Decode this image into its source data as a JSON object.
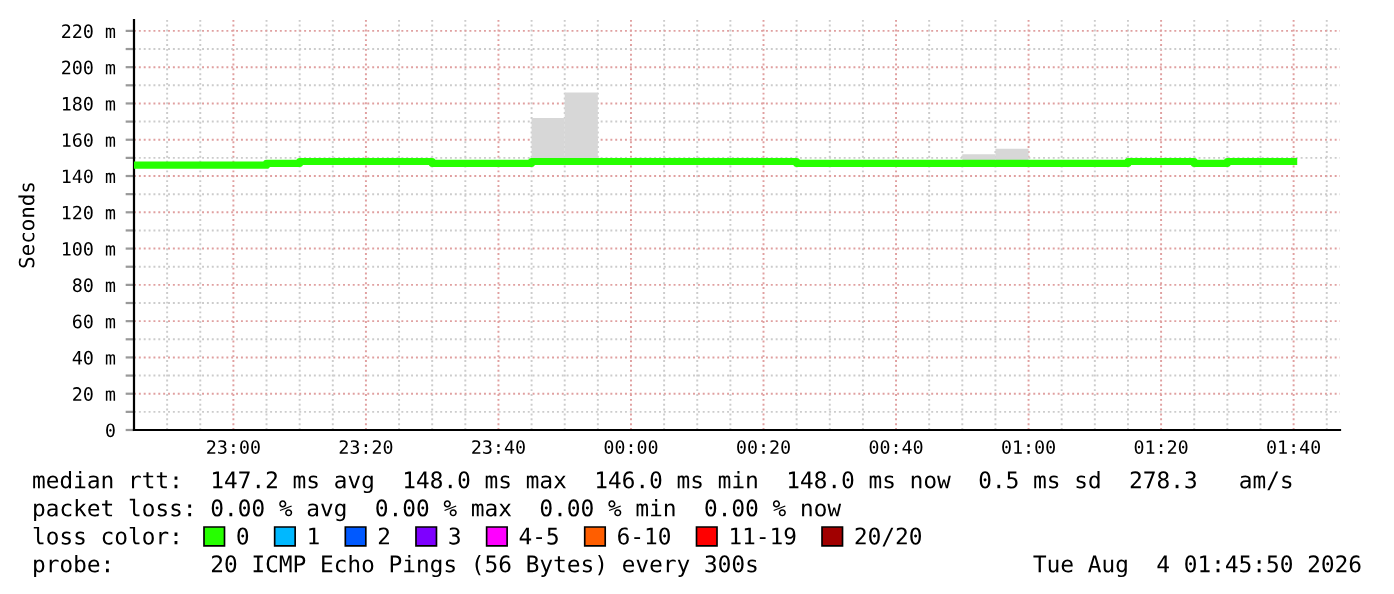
{
  "chart_data": {
    "type": "step",
    "ylabel": "Seconds",
    "legend_title": "loss color:",
    "legend": "bottom",
    "grid": true,
    "xlim": [
      "2026-08-03T22:45",
      "2026-08-04T01:47"
    ],
    "ylim": [
      0,
      226
    ],
    "xticks": [
      {
        "value": "2026-08-03T22:50",
        "label": null
      },
      {
        "value": "2026-08-03T22:55",
        "label": null
      },
      {
        "value": "2026-08-03T23:00",
        "label": "23:00"
      },
      {
        "value": "2026-08-03T23:05",
        "label": null
      },
      {
        "value": "2026-08-03T23:10",
        "label": null
      },
      {
        "value": "2026-08-03T23:15",
        "label": null
      },
      {
        "value": "2026-08-03T23:20",
        "label": "23:20"
      },
      {
        "value": "2026-08-03T23:25",
        "label": null
      },
      {
        "value": "2026-08-03T23:30",
        "label": null
      },
      {
        "value": "2026-08-03T23:35",
        "label": null
      },
      {
        "value": "2026-08-03T23:40",
        "label": "23:40"
      },
      {
        "value": "2026-08-03T23:45",
        "label": null
      },
      {
        "value": "2026-08-03T23:50",
        "label": null
      },
      {
        "value": "2026-08-03T23:55",
        "label": null
      },
      {
        "value": "2026-08-04T00:00",
        "label": "00:00"
      },
      {
        "value": "2026-08-04T00:05",
        "label": null
      },
      {
        "value": "2026-08-04T00:10",
        "label": null
      },
      {
        "value": "2026-08-04T00:15",
        "label": null
      },
      {
        "value": "2026-08-04T00:20",
        "label": "00:20"
      },
      {
        "value": "2026-08-04T00:25",
        "label": null
      },
      {
        "value": "2026-08-04T00:30",
        "label": null
      },
      {
        "value": "2026-08-04T00:35",
        "label": null
      },
      {
        "value": "2026-08-04T00:40",
        "label": "00:40"
      },
      {
        "value": "2026-08-04T00:45",
        "label": null
      },
      {
        "value": "2026-08-04T00:50",
        "label": null
      },
      {
        "value": "2026-08-04T00:55",
        "label": null
      },
      {
        "value": "2026-08-04T01:00",
        "label": "01:00"
      },
      {
        "value": "2026-08-04T01:05",
        "label": null
      },
      {
        "value": "2026-08-04T01:10",
        "label": null
      },
      {
        "value": "2026-08-04T01:15",
        "label": null
      },
      {
        "value": "2026-08-04T01:20",
        "label": "01:20"
      },
      {
        "value": "2026-08-04T01:25",
        "label": null
      },
      {
        "value": "2026-08-04T01:30",
        "label": null
      },
      {
        "value": "2026-08-04T01:35",
        "label": null
      },
      {
        "value": "2026-08-04T01:40",
        "label": "01:40"
      },
      {
        "value": "2026-08-04T01:45",
        "label": null
      }
    ],
    "yticks": [
      0,
      {
        "value": 10,
        "label": null
      },
      {
        "value": 20,
        "label": "20 m"
      },
      {
        "value": 30,
        "label": null
      },
      {
        "value": 40,
        "label": "40 m"
      },
      {
        "value": 50,
        "label": null
      },
      {
        "value": 60,
        "label": "60 m"
      },
      {
        "value": 70,
        "label": null
      },
      {
        "value": 80,
        "label": "80 m"
      },
      {
        "value": 90,
        "label": null
      },
      {
        "value": 100,
        "label": "100 m"
      },
      {
        "value": 110,
        "label": null
      },
      {
        "value": 120,
        "label": "120 m"
      },
      {
        "value": 130,
        "label": null
      },
      {
        "value": 140,
        "label": "140 m"
      },
      {
        "value": 150,
        "label": null
      },
      {
        "value": 160,
        "label": "160 m"
      },
      {
        "value": 170,
        "label": null
      },
      {
        "value": 180,
        "label": "180 m"
      },
      {
        "value": 190,
        "label": null
      },
      {
        "value": 200,
        "label": "200 m"
      },
      {
        "value": 210,
        "label": null
      },
      {
        "value": 220,
        "label": "220 m"
      }
    ],
    "series": [
      {
        "type": "bar",
        "color": "#d7d7d7",
        "x": [
          "2026-08-03T23:47:30",
          "2026-08-03T23:52:30",
          "2026-08-04T00:52:30",
          "2026-08-04T00:57:30"
        ],
        "base": [
          148,
          148,
          147,
          147
        ],
        "values": [
          24,
          38,
          5,
          8
        ]
      },
      {
        "name": "0",
        "color": "#26ff00",
        "x": [
          "2026-08-03T22:45",
          "2026-08-03T22:50",
          "2026-08-03T22:55",
          "2026-08-03T23:00",
          "2026-08-03T23:05",
          "2026-08-03T23:10",
          "2026-08-03T23:15",
          "2026-08-03T23:20",
          "2026-08-03T23:25",
          "2026-08-03T23:30",
          "2026-08-03T23:35",
          "2026-08-03T23:40",
          "2026-08-03T23:45",
          "2026-08-03T23:50",
          "2026-08-03T23:55",
          "2026-08-04T00:00",
          "2026-08-04T00:05",
          "2026-08-04T00:10",
          "2026-08-04T00:15",
          "2026-08-04T00:20",
          "2026-08-04T00:25",
          "2026-08-04T00:30",
          "2026-08-04T00:35",
          "2026-08-04T00:40",
          "2026-08-04T00:45",
          "2026-08-04T00:50",
          "2026-08-04T00:55",
          "2026-08-04T01:00",
          "2026-08-04T01:05",
          "2026-08-04T01:10",
          "2026-08-04T01:15",
          "2026-08-04T01:20",
          "2026-08-04T01:25",
          "2026-08-04T01:30",
          "2026-08-04T01:35",
          "2026-08-04T01:40"
        ],
        "values": [
          146,
          146,
          146,
          146,
          147,
          148,
          148,
          148,
          148,
          147,
          147,
          147,
          148,
          148,
          148,
          148,
          148,
          148,
          148,
          148,
          147,
          147,
          147,
          147,
          147,
          147,
          147,
          147,
          147,
          147,
          148,
          148,
          147,
          148,
          148,
          148
        ]
      },
      {
        "name": "1",
        "color": "#00b8ff"
      },
      {
        "name": "2",
        "color": "#0059ff"
      },
      {
        "name": "3",
        "color": "#7e00ff"
      },
      {
        "name": "4-5",
        "color": "#ff00ff"
      },
      {
        "name": "6-10",
        "color": "#ff5e00"
      },
      {
        "name": "11-19",
        "color": "#ff0000"
      },
      {
        "name": "20/20",
        "color": "#a10000"
      }
    ],
    "annotations": [
      "median rtt:  147.2 ms avg  148.0 ms max  146.0 ms min  148.0 ms now  0.5 ms sd  278.3   am/s",
      "packet loss: 0.00 % avg  0.00 % max  0.00 % min  0.00 % now",
      "probe:       20 ICMP Echo Pings (56 Bytes) every 300s",
      "Tue Aug  4 01:45:50 2026"
    ]
  }
}
